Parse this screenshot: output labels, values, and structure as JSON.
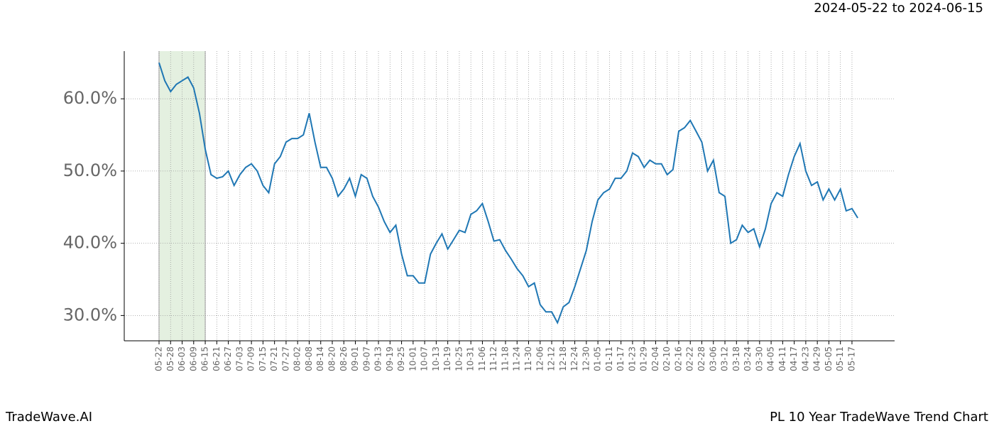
{
  "chart_data": {
    "type": "line",
    "title": "2024-05-22 to 2024-06-15",
    "footer_left": "TradeWave.AI",
    "footer_right": "PL 10 Year TradeWave Trend Chart",
    "categories": [
      "05-22",
      null,
      "05-28",
      null,
      "06-03",
      null,
      "06-09",
      null,
      "06-15",
      null,
      "06-21",
      null,
      "06-27",
      null,
      "07-03",
      null,
      "07-09",
      null,
      "07-15",
      null,
      "07-21",
      null,
      "07-27",
      null,
      "08-02",
      null,
      "08-08",
      null,
      "08-14",
      null,
      "08-20",
      null,
      "08-26",
      null,
      "09-01",
      null,
      "09-07",
      null,
      "09-13",
      null,
      "09-19",
      null,
      "09-25",
      null,
      "10-01",
      null,
      "10-07",
      null,
      "10-13",
      null,
      "10-19",
      null,
      "10-25",
      null,
      "10-31",
      null,
      "11-06",
      null,
      "11-12",
      null,
      "11-18",
      null,
      "11-24",
      null,
      "11-30",
      null,
      "12-06",
      null,
      "12-12",
      null,
      "12-18",
      null,
      "12-24",
      null,
      "12-30",
      null,
      "01-05",
      null,
      "01-11",
      null,
      "01-17",
      null,
      "01-23",
      null,
      "01-29",
      null,
      "02-04",
      null,
      "02-10",
      null,
      "02-16",
      null,
      "02-22",
      null,
      "02-28",
      null,
      "03-06",
      null,
      "03-12",
      null,
      "03-18",
      null,
      "03-24",
      null,
      "03-30",
      null,
      "04-05",
      null,
      "04-11",
      null,
      "04-17",
      null,
      "04-23",
      null,
      "04-29",
      null,
      "05-05",
      null,
      "05-11",
      null,
      "05-17",
      null
    ],
    "series": [
      {
        "color": "#1f77b4",
        "values": [
          65,
          62.5,
          61,
          62,
          62.5,
          63,
          61.5,
          58,
          53,
          49.5,
          49,
          49.2,
          50,
          48,
          49.5,
          50.5,
          51,
          50,
          48,
          47,
          51,
          52,
          54,
          54.5,
          54.5,
          55,
          58,
          54,
          50.5,
          50.5,
          49,
          46.5,
          47.5,
          49,
          46.5,
          49.5,
          49,
          46.5,
          45,
          43,
          41.5,
          42.5,
          38.5,
          35.5,
          35.5,
          34.5,
          34.5,
          38.5,
          40,
          41.3,
          39.2,
          40.5,
          41.8,
          41.5,
          44,
          44.5,
          45.5,
          43,
          40.3,
          40.5,
          39,
          37.8,
          36.5,
          35.5,
          34,
          34.5,
          31.5,
          30.5,
          30.5,
          29,
          31.2,
          31.8,
          34,
          36.5,
          39,
          43,
          46,
          47,
          47.5,
          49,
          49,
          50,
          52.5,
          52,
          50.5,
          51.5,
          51,
          51,
          49.5,
          50.2,
          55.5,
          56,
          57,
          55.5,
          54,
          50,
          51.5,
          47,
          46.5,
          40,
          40.5,
          42.5,
          41.5,
          42,
          39.5,
          42,
          45.5,
          47,
          46.5,
          49.5,
          52,
          53.8,
          50,
          48,
          48.5,
          46,
          47.5,
          46,
          47.5,
          44.5,
          44.8,
          43.5
        ]
      }
    ],
    "highlight": {
      "start": "05-22",
      "end": "06-15",
      "color": "#d9ead3"
    },
    "ylim": [
      26.5,
      66.6
    ],
    "yticks": [
      {
        "value": 30,
        "label": "30.0%"
      },
      {
        "value": 40,
        "label": "40.0%"
      },
      {
        "value": 50,
        "label": "50.0%"
      },
      {
        "value": 60,
        "label": "60.0%"
      }
    ],
    "grid": true
  }
}
